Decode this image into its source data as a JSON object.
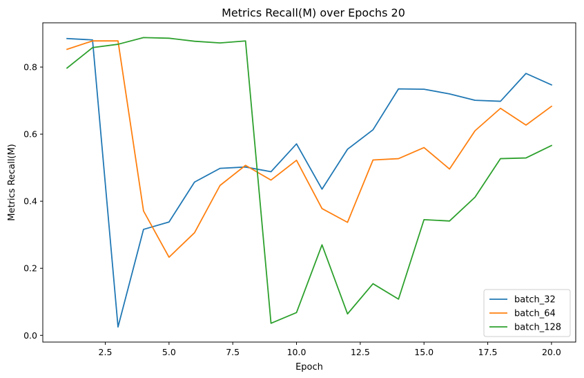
{
  "chart_data": {
    "type": "line",
    "title": "Metrics Recall(M) over Epochs 20",
    "xlabel": "Epoch",
    "ylabel": "Metrics Recall(M)",
    "xlim": [
      0.05,
      20.95
    ],
    "ylim": [
      -0.02,
      0.932
    ],
    "xticks": [
      2.5,
      5.0,
      7.5,
      10.0,
      12.5,
      15.0,
      17.5,
      20.0
    ],
    "xtick_labels": [
      "2.5",
      "5.0",
      "7.5",
      "10.0",
      "12.5",
      "15.0",
      "17.5",
      "20.0"
    ],
    "yticks": [
      0.0,
      0.2,
      0.4,
      0.6,
      0.8
    ],
    "ytick_labels": [
      "0.0",
      "0.2",
      "0.4",
      "0.6",
      "0.8"
    ],
    "grid": false,
    "legend_position": "bottom-right",
    "x": [
      1,
      2,
      3,
      4,
      5,
      6,
      7,
      8,
      9,
      10,
      11,
      12,
      13,
      14,
      15,
      16,
      17,
      18,
      19,
      20
    ],
    "series": [
      {
        "name": "batch_32",
        "color": "#1f77b4",
        "values": [
          0.885,
          0.881,
          0.025,
          0.316,
          0.338,
          0.457,
          0.498,
          0.502,
          0.488,
          0.571,
          0.436,
          0.555,
          0.613,
          0.735,
          0.734,
          0.72,
          0.701,
          0.698,
          0.781,
          0.747
        ]
      },
      {
        "name": "batch_64",
        "color": "#ff7f0e",
        "values": [
          0.853,
          0.878,
          0.878,
          0.371,
          0.233,
          0.306,
          0.447,
          0.507,
          0.463,
          0.522,
          0.378,
          0.337,
          0.523,
          0.527,
          0.56,
          0.496,
          0.61,
          0.677,
          0.627,
          0.683
        ]
      },
      {
        "name": "batch_128",
        "color": "#2ca02c",
        "values": [
          0.797,
          0.858,
          0.868,
          0.888,
          0.886,
          0.877,
          0.872,
          0.878,
          0.036,
          0.068,
          0.27,
          0.064,
          0.154,
          0.108,
          0.345,
          0.341,
          0.412,
          0.527,
          0.529,
          0.566
        ]
      }
    ]
  }
}
